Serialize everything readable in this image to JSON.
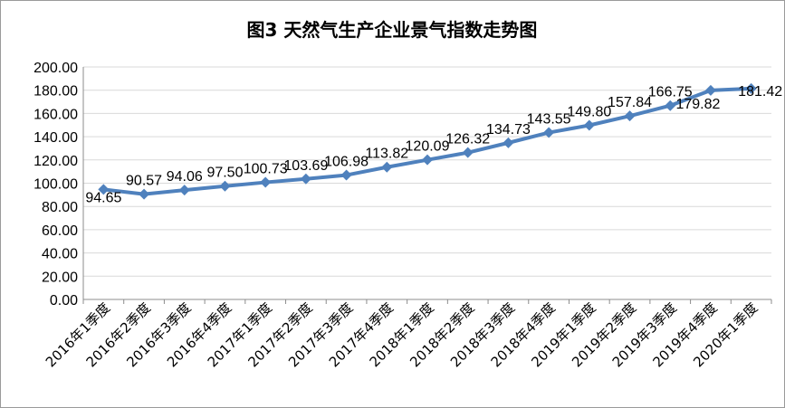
{
  "chart_data": {
    "type": "line",
    "title": "图3 天然气生产企业景气指数走势图",
    "xlabel": "",
    "ylabel": "",
    "categories": [
      "2016年1季度",
      "2016年2季度",
      "2016年3季度",
      "2016年4季度",
      "2017年1季度",
      "2017年2季度",
      "2017年3季度",
      "2017年4季度",
      "2018年1季度",
      "2018年2季度",
      "2018年3季度",
      "2018年4季度",
      "2019年1季度",
      "2019年2季度",
      "2019年3季度",
      "2019年4季度",
      "2020年1季度"
    ],
    "values": [
      94.65,
      90.57,
      94.06,
      97.5,
      100.73,
      103.69,
      106.98,
      113.82,
      120.09,
      126.32,
      134.73,
      143.55,
      149.8,
      157.84,
      166.75,
      179.82,
      181.42
    ],
    "labels": [
      "94.65",
      "90.57",
      "94.06",
      "97.50",
      "100.73",
      "103.69",
      "106.98",
      "113.82",
      "120.09",
      "126.32",
      "134.73",
      "143.55",
      "149.80",
      "157.84",
      "166.75",
      "179.82",
      "181.42"
    ],
    "ylim": [
      0,
      200
    ],
    "yticks": [
      "0.00",
      "20.00",
      "40.00",
      "60.00",
      "80.00",
      "100.00",
      "120.00",
      "140.00",
      "160.00",
      "180.00",
      "200.00"
    ],
    "grid": true,
    "legend": "none",
    "line_color": "#4F81BD"
  }
}
